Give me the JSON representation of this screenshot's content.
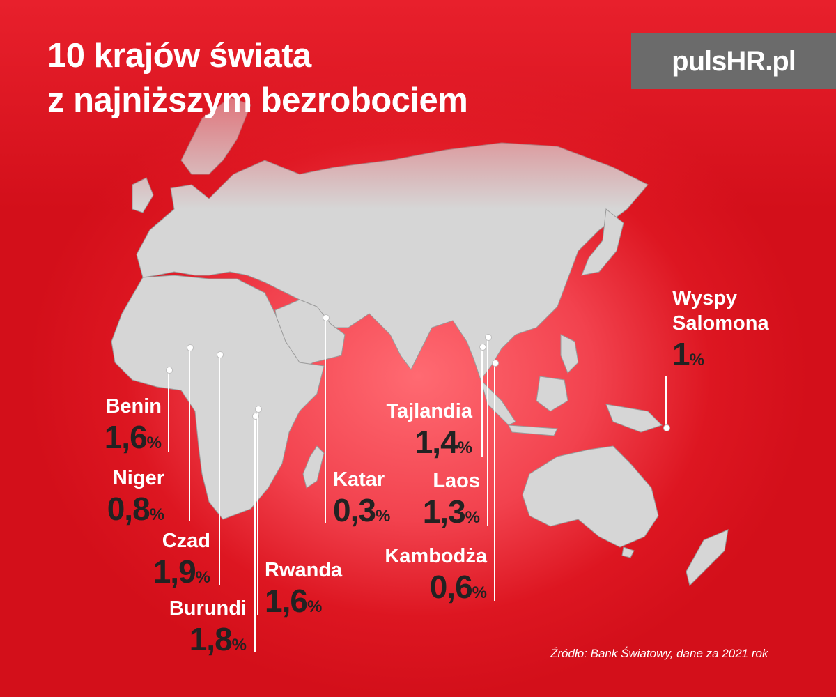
{
  "title": {
    "line1": "10 krajów świata",
    "line2": "z najniższym bezrobociem"
  },
  "logo": "pulsHR.pl",
  "countries": [
    {
      "name": "Benin",
      "value": "1,6",
      "unit": "%"
    },
    {
      "name": "Niger",
      "value": "0,8",
      "unit": "%"
    },
    {
      "name": "Czad",
      "value": "1,9",
      "unit": "%"
    },
    {
      "name": "Burundi",
      "value": "1,8",
      "unit": "%"
    },
    {
      "name": "Rwanda",
      "value": "1,6",
      "unit": "%"
    },
    {
      "name": "Katar",
      "value": "0,3",
      "unit": "%"
    },
    {
      "name": "Tajlandia",
      "value": "1,4",
      "unit": "%"
    },
    {
      "name": "Laos",
      "value": "1,3",
      "unit": "%"
    },
    {
      "name": "Kambodża",
      "value": "0,6",
      "unit": "%"
    },
    {
      "name": "Wyspy",
      "name2": "Salomona",
      "value": "1",
      "unit": "%"
    }
  ],
  "source": "Źródło: Bank Światowy, dane za 2021 rok",
  "colors": {
    "background": "#d30f1a",
    "land": "#d4d4d4",
    "value_text": "#222222",
    "logo_bg": "#6b6b6b"
  }
}
